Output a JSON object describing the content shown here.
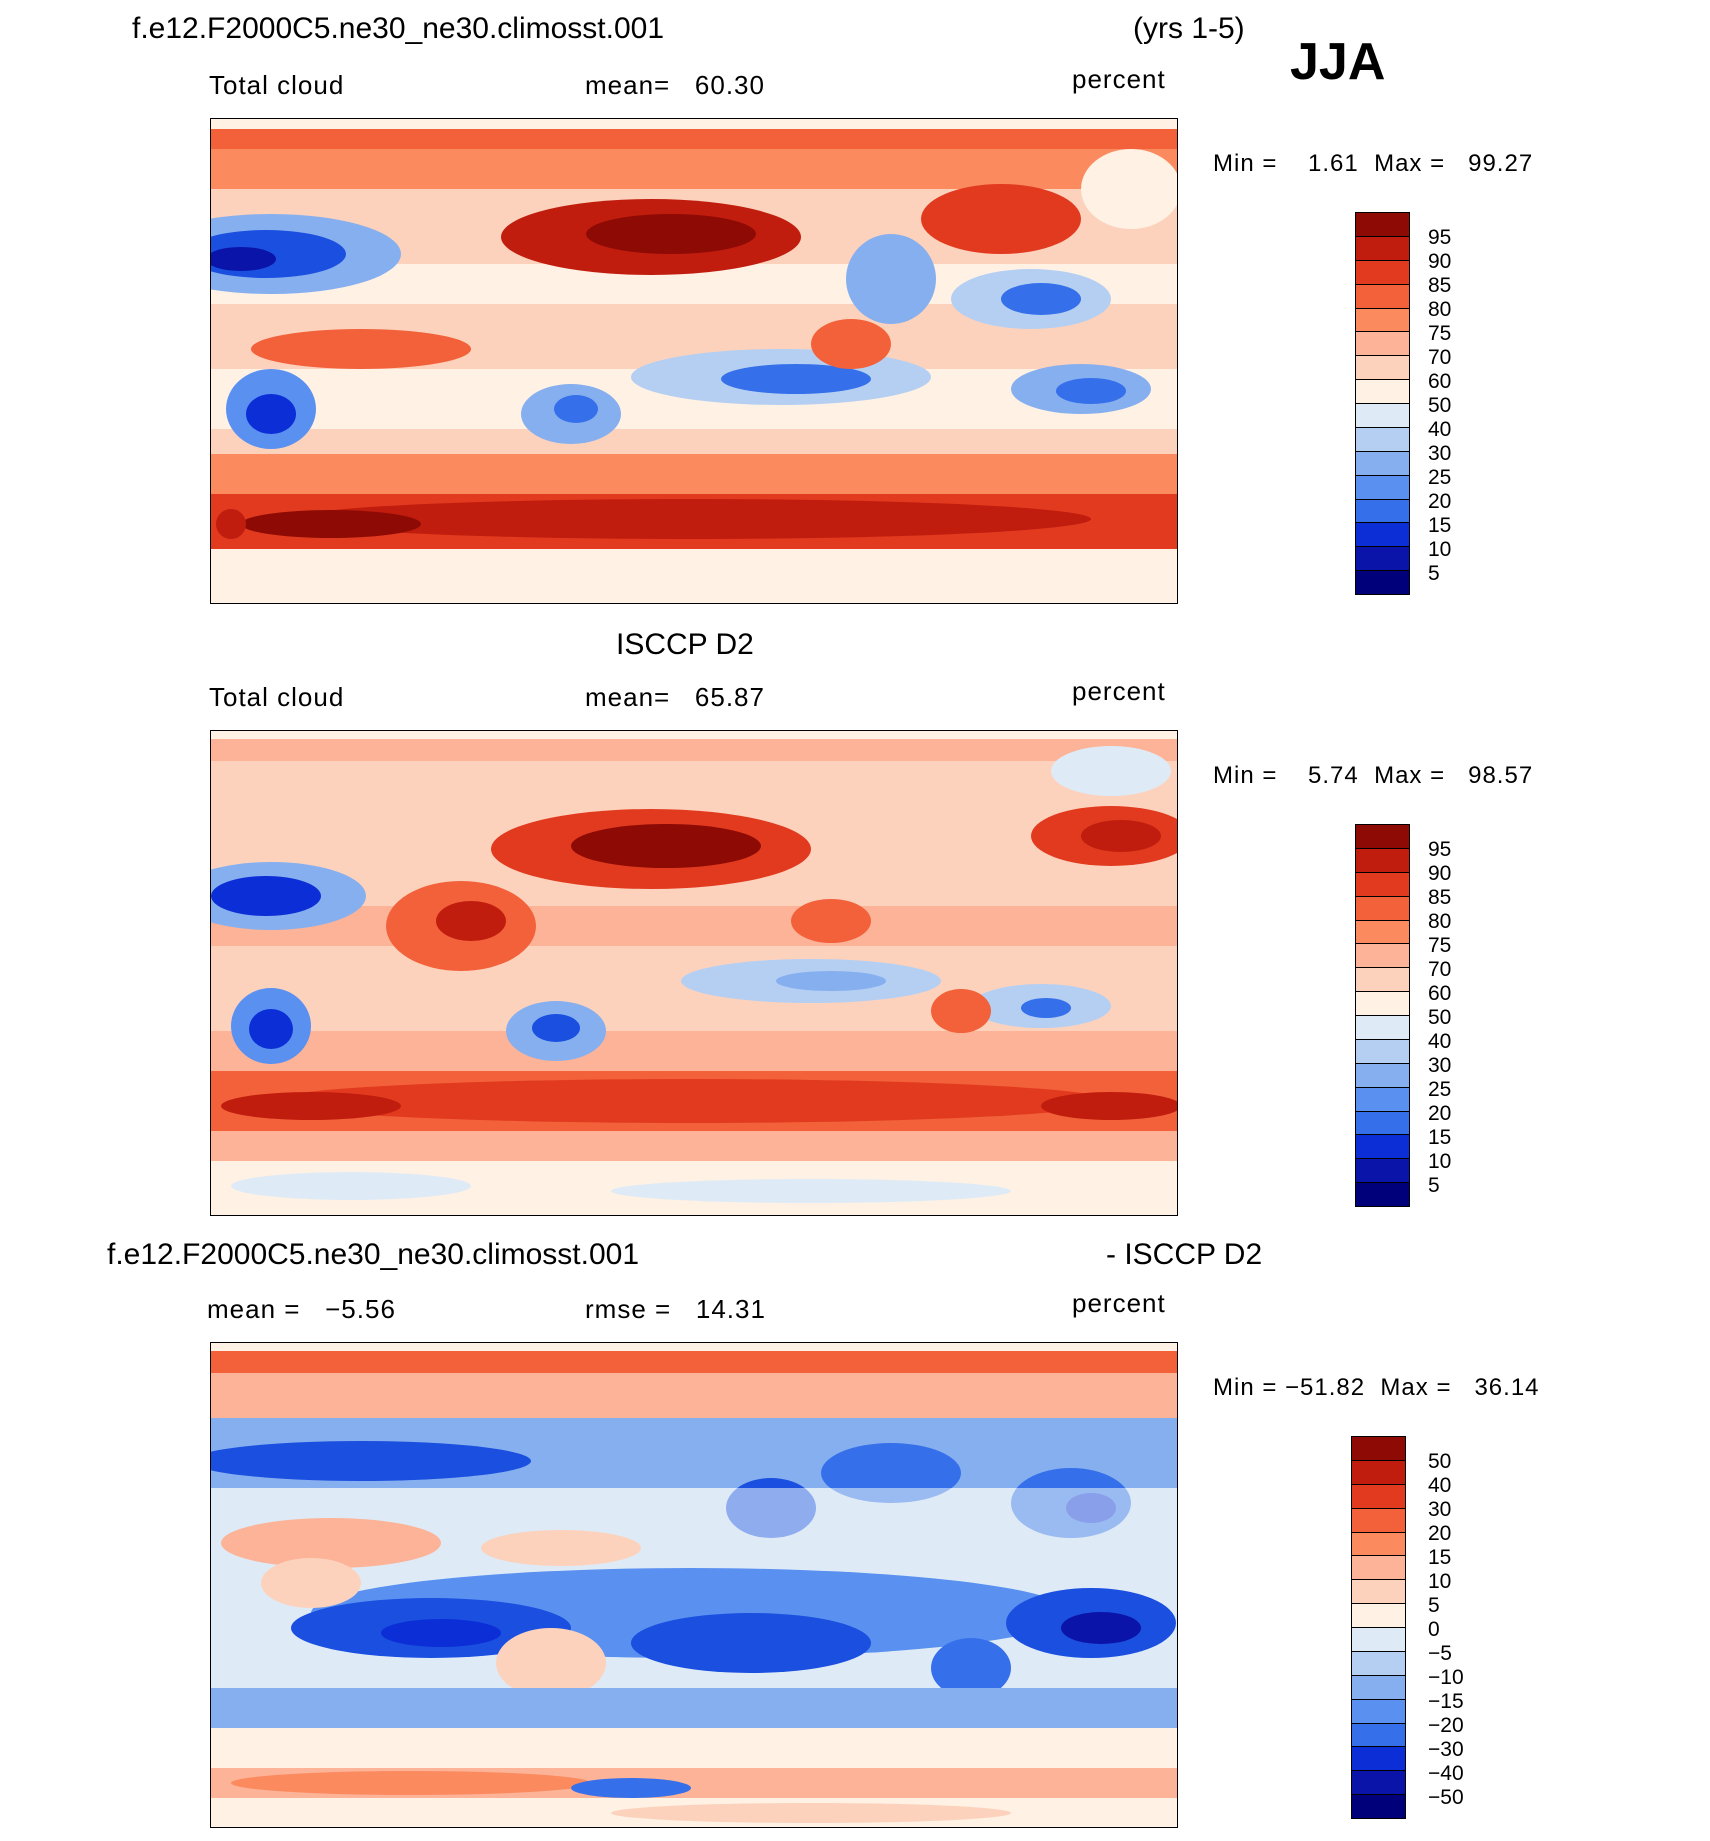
{
  "season": "JJA",
  "colors": {
    "cloud_scale": [
      "#00007a",
      "#0a14a8",
      "#0c2ed6",
      "#1a4fe0",
      "#3570ea",
      "#5a90f0",
      "#86afef",
      "#b5cff2",
      "#deebf7",
      "#fff1e4",
      "#fdd2bd",
      "#fcb397",
      "#fb8a5e",
      "#f2613a",
      "#e23a1f",
      "#c01d0e",
      "#8e0a05"
    ],
    "diff_scale": [
      "#00007a",
      "#0a14a8",
      "#0c2ed6",
      "#1a4fe0",
      "#3570ea",
      "#5a90f0",
      "#86afef",
      "#b5cff2",
      "#deebf7",
      "#fff1e4",
      "#fdd2bd",
      "#fcb397",
      "#fb8a5e",
      "#f2613a",
      "#e23a1f",
      "#c01d0e",
      "#8e0a05"
    ]
  },
  "panels": {
    "model": {
      "case_name": "f.e12.F2000C5.ne30_ne30.climosst.001",
      "years": "(yrs 1-5)",
      "variable": "Total cloud",
      "mean_label": "mean=   60.30",
      "units": "percent",
      "minmax": "Min =    1.61  Max =   99.27",
      "legend_labels": [
        "95",
        "90",
        "85",
        "80",
        "75",
        "70",
        "60",
        "50",
        "40",
        "30",
        "25",
        "20",
        "15",
        "10",
        "5"
      ]
    },
    "obs": {
      "title": "ISCCP D2",
      "variable": "Total cloud",
      "mean_label": "mean=   65.87",
      "units": "percent",
      "minmax": "Min =    5.74  Max =   98.57",
      "legend_labels": [
        "95",
        "90",
        "85",
        "80",
        "75",
        "70",
        "60",
        "50",
        "40",
        "30",
        "25",
        "20",
        "15",
        "10",
        "5"
      ]
    },
    "diff": {
      "case_name": "f.e12.F2000C5.ne30_ne30.climosst.001",
      "minus_label": "- ISCCP D2",
      "mean_label": "mean =   −5.56",
      "rmse_label": "rmse =   14.31",
      "units": "percent",
      "minmax": "Min = −51.82  Max =   36.14",
      "legend_labels": [
        "50",
        "40",
        "30",
        "20",
        "15",
        "10",
        "5",
        "0",
        "−5",
        "−10",
        "−15",
        "−20",
        "−30",
        "−40",
        "−50"
      ]
    }
  }
}
